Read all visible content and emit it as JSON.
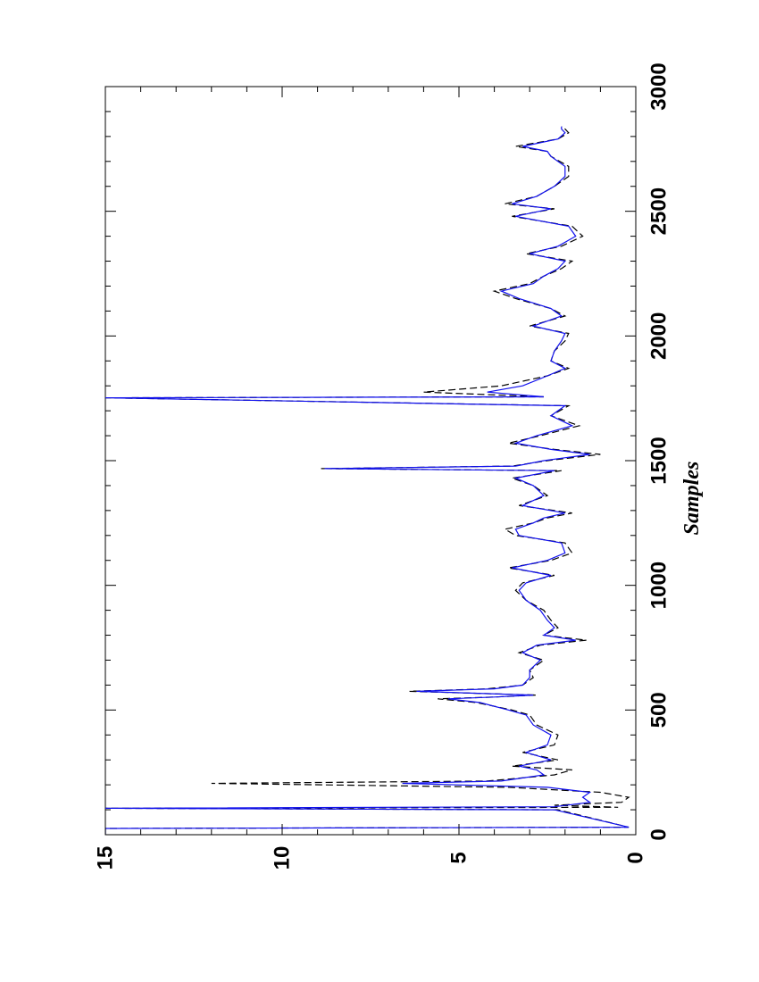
{
  "chart_data": {
    "type": "line",
    "orientation": "rotated-90",
    "title": "",
    "xlabel": "Samples",
    "ylabel": "",
    "xlim": [
      0,
      3000
    ],
    "ylim": [
      0,
      15
    ],
    "x_ticks": [
      "0",
      "500",
      "1000",
      "1500",
      "2000",
      "2500",
      "3000"
    ],
    "y_ticks": [
      "0",
      "5",
      "10",
      "15"
    ],
    "grid": false,
    "legend": "none",
    "series": [
      {
        "color": "#000000",
        "style": "dashed",
        "points": [
          [
            0,
            15
          ],
          [
            25,
            15
          ],
          [
            30,
            0.2
          ],
          [
            100,
            2.2
          ],
          [
            106,
            15
          ],
          [
            110,
            0.5
          ],
          [
            118,
            2.3
          ],
          [
            130,
            0.4
          ],
          [
            150,
            0.2
          ],
          [
            170,
            1
          ],
          [
            190,
            3.6
          ],
          [
            206,
            12
          ],
          [
            215,
            4.2
          ],
          [
            240,
            2.3
          ],
          [
            260,
            1.8
          ],
          [
            275,
            3.5
          ],
          [
            300,
            2.2
          ],
          [
            330,
            3.2
          ],
          [
            360,
            2.3
          ],
          [
            400,
            2.2
          ],
          [
            440,
            2.8
          ],
          [
            480,
            3
          ],
          [
            500,
            3.5
          ],
          [
            530,
            4.5
          ],
          [
            545,
            5.6
          ],
          [
            552,
            4
          ],
          [
            560,
            2.8
          ],
          [
            575,
            6.4
          ],
          [
            585,
            4.2
          ],
          [
            600,
            3.2
          ],
          [
            630,
            2.9
          ],
          [
            660,
            3
          ],
          [
            700,
            2.6
          ],
          [
            730,
            3.3
          ],
          [
            760,
            2.7
          ],
          [
            780,
            1.4
          ],
          [
            800,
            2.6
          ],
          [
            830,
            2.2
          ],
          [
            860,
            2.4
          ],
          [
            900,
            2.6
          ],
          [
            940,
            3.1
          ],
          [
            980,
            3.4
          ],
          [
            1010,
            3.2
          ],
          [
            1040,
            2.3
          ],
          [
            1070,
            3.6
          ],
          [
            1100,
            2.4
          ],
          [
            1130,
            1.8
          ],
          [
            1170,
            2.0
          ],
          [
            1200,
            3.4
          ],
          [
            1225,
            3.7
          ],
          [
            1250,
            2.9
          ],
          [
            1270,
            2.5
          ],
          [
            1290,
            1.8
          ],
          [
            1320,
            3.3
          ],
          [
            1360,
            2.5
          ],
          [
            1400,
            2.9
          ],
          [
            1430,
            3.5
          ],
          [
            1460,
            2.1
          ],
          [
            1468,
            8.9
          ],
          [
            1478,
            3.5
          ],
          [
            1500,
            2.5
          ],
          [
            1525,
            1.0
          ],
          [
            1545,
            2.3
          ],
          [
            1570,
            3.6
          ],
          [
            1600,
            2.7
          ],
          [
            1640,
            1.6
          ],
          [
            1680,
            2.4
          ],
          [
            1720,
            1.9
          ],
          [
            1752,
            15
          ],
          [
            1756,
            2.6
          ],
          [
            1775,
            6.0
          ],
          [
            1800,
            3.8
          ],
          [
            1840,
            2.5
          ],
          [
            1870,
            1.9
          ],
          [
            1900,
            2.4
          ],
          [
            1940,
            2.3
          ],
          [
            1980,
            2.0
          ],
          [
            2010,
            1.9
          ],
          [
            2040,
            3.0
          ],
          [
            2080,
            2.0
          ],
          [
            2110,
            2.4
          ],
          [
            2150,
            3.4
          ],
          [
            2180,
            4.0
          ],
          [
            2210,
            3.0
          ],
          [
            2240,
            2.6
          ],
          [
            2270,
            2.1
          ],
          [
            2300,
            1.8
          ],
          [
            2330,
            3.1
          ],
          [
            2360,
            2.1
          ],
          [
            2400,
            1.5
          ],
          [
            2440,
            1.8
          ],
          [
            2480,
            3.5
          ],
          [
            2510,
            2.3
          ],
          [
            2530,
            3.7
          ],
          [
            2560,
            2.8
          ],
          [
            2600,
            2.3
          ],
          [
            2640,
            1.9
          ],
          [
            2680,
            1.9
          ],
          [
            2720,
            2.4
          ],
          [
            2740,
            2.5
          ],
          [
            2760,
            3.4
          ],
          [
            2790,
            2.2
          ],
          [
            2815,
            1.9
          ],
          [
            2830,
            2.0
          ],
          [
            2840,
            2.1
          ]
        ]
      },
      {
        "color": "#1010ee",
        "style": "solid",
        "points": [
          [
            0,
            15
          ],
          [
            25,
            15
          ],
          [
            30,
            0.2
          ],
          [
            100,
            2.3
          ],
          [
            106,
            15
          ],
          [
            112,
            2.3
          ],
          [
            130,
            1.3
          ],
          [
            150,
            1.5
          ],
          [
            170,
            1.3
          ],
          [
            190,
            2.5
          ],
          [
            206,
            6.6
          ],
          [
            215,
            3.8
          ],
          [
            240,
            2.6
          ],
          [
            260,
            2.8
          ],
          [
            275,
            3.3
          ],
          [
            300,
            2.4
          ],
          [
            330,
            3.1
          ],
          [
            360,
            2.5
          ],
          [
            400,
            2.4
          ],
          [
            440,
            2.9
          ],
          [
            480,
            3.1
          ],
          [
            500,
            3.6
          ],
          [
            530,
            4.4
          ],
          [
            545,
            5.3
          ],
          [
            552,
            4
          ],
          [
            560,
            2.9
          ],
          [
            575,
            6.2
          ],
          [
            585,
            4.0
          ],
          [
            600,
            3.2
          ],
          [
            630,
            3.0
          ],
          [
            660,
            3.0
          ],
          [
            700,
            2.7
          ],
          [
            730,
            3.2
          ],
          [
            760,
            2.8
          ],
          [
            780,
            1.7
          ],
          [
            800,
            2.6
          ],
          [
            830,
            2.3
          ],
          [
            860,
            2.5
          ],
          [
            900,
            2.7
          ],
          [
            940,
            3.1
          ],
          [
            980,
            3.3
          ],
          [
            1010,
            3.1
          ],
          [
            1040,
            2.4
          ],
          [
            1070,
            3.5
          ],
          [
            1100,
            2.5
          ],
          [
            1130,
            2.0
          ],
          [
            1170,
            2.1
          ],
          [
            1200,
            3.3
          ],
          [
            1225,
            3.4
          ],
          [
            1250,
            2.9
          ],
          [
            1270,
            2.6
          ],
          [
            1290,
            2.0
          ],
          [
            1320,
            3.2
          ],
          [
            1360,
            2.6
          ],
          [
            1400,
            2.9
          ],
          [
            1430,
            3.4
          ],
          [
            1460,
            2.3
          ],
          [
            1468,
            8.8
          ],
          [
            1478,
            3.4
          ],
          [
            1500,
            2.6
          ],
          [
            1525,
            1.3
          ],
          [
            1545,
            2.4
          ],
          [
            1570,
            3.4
          ],
          [
            1600,
            2.8
          ],
          [
            1640,
            1.8
          ],
          [
            1680,
            2.4
          ],
          [
            1720,
            2.0
          ],
          [
            1752,
            15
          ],
          [
            1756,
            2.6
          ],
          [
            1775,
            4.2
          ],
          [
            1800,
            3.2
          ],
          [
            1840,
            2.5
          ],
          [
            1870,
            2.0
          ],
          [
            1900,
            2.4
          ],
          [
            1940,
            2.3
          ],
          [
            1980,
            2.1
          ],
          [
            2010,
            2.0
          ],
          [
            2040,
            2.9
          ],
          [
            2080,
            2.1
          ],
          [
            2110,
            2.4
          ],
          [
            2150,
            3.3
          ],
          [
            2180,
            3.8
          ],
          [
            2210,
            2.9
          ],
          [
            2240,
            2.6
          ],
          [
            2270,
            2.2
          ],
          [
            2300,
            2.0
          ],
          [
            2330,
            3.0
          ],
          [
            2360,
            2.2
          ],
          [
            2400,
            1.7
          ],
          [
            2440,
            1.9
          ],
          [
            2480,
            3.4
          ],
          [
            2510,
            2.4
          ],
          [
            2530,
            3.5
          ],
          [
            2560,
            2.8
          ],
          [
            2600,
            2.3
          ],
          [
            2640,
            2.0
          ],
          [
            2680,
            2.0
          ],
          [
            2720,
            2.4
          ],
          [
            2740,
            2.5
          ],
          [
            2760,
            3.2
          ],
          [
            2790,
            2.2
          ],
          [
            2815,
            2.0
          ],
          [
            2830,
            2.1
          ],
          [
            2840,
            2.1
          ]
        ]
      }
    ]
  }
}
